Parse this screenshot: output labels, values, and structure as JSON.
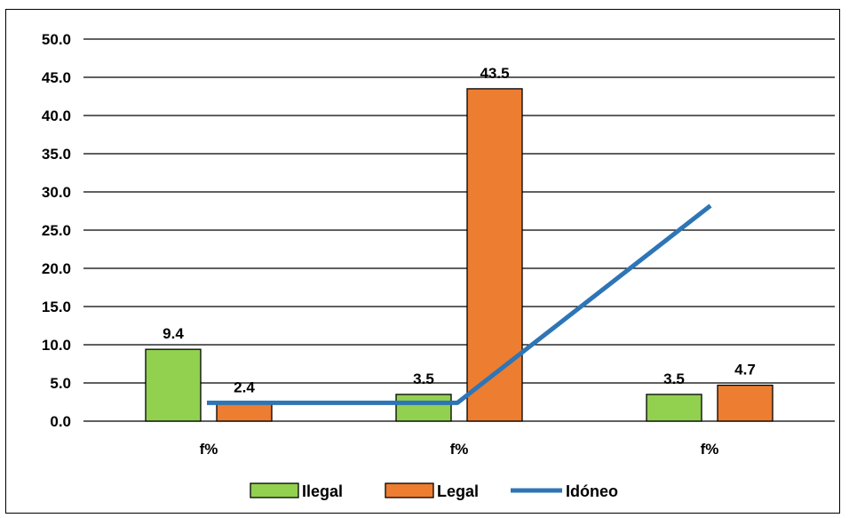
{
  "chart_data": {
    "type": "bar",
    "categories": [
      "f%",
      "f%",
      "f%"
    ],
    "series": [
      {
        "name": "Ilegal",
        "kind": "bar",
        "color": "#92d050",
        "values": [
          9.4,
          3.5,
          3.5
        ]
      },
      {
        "name": "Legal",
        "kind": "bar",
        "color": "#ed7d31",
        "values": [
          2.4,
          43.5,
          4.7
        ]
      },
      {
        "name": "Idóneo",
        "kind": "line",
        "color": "#2e75b6",
        "values": [
          2.4,
          2.4,
          28.2
        ]
      }
    ],
    "data_labels": {
      "Ilegal": [
        "9.4",
        "3.5",
        "3.5"
      ],
      "Legal": [
        "2.4",
        "43.5",
        "4.7"
      ]
    },
    "y_ticks": [
      "0.0",
      "5.0",
      "10.0",
      "15.0",
      "20.0",
      "25.0",
      "30.0",
      "35.0",
      "40.0",
      "45.0",
      "50.0"
    ],
    "ylim": [
      0,
      50
    ],
    "grid": true,
    "legend_position": "bottom"
  }
}
